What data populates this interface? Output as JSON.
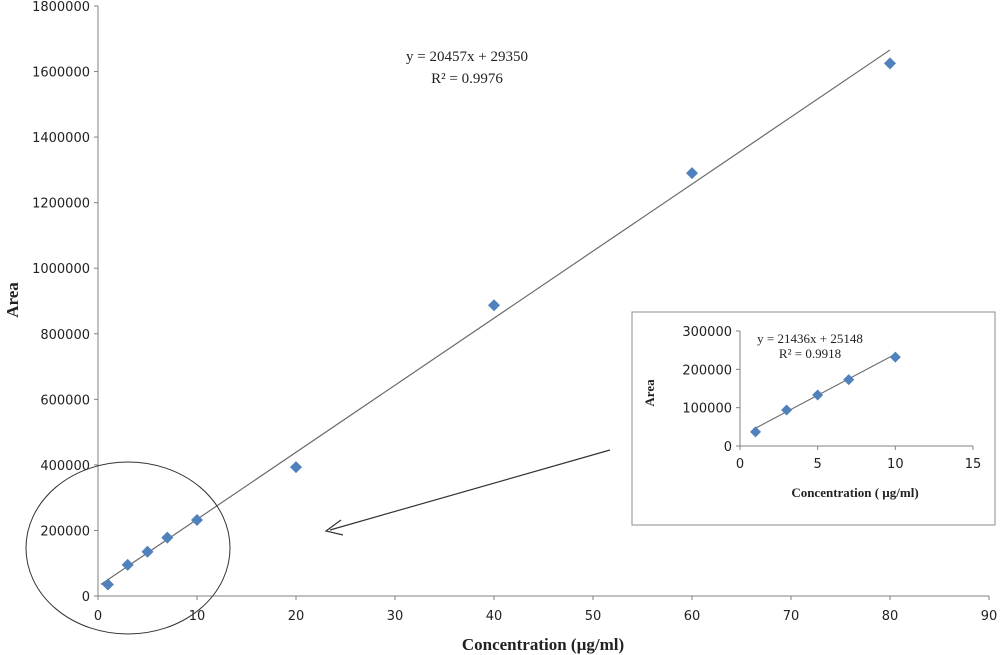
{
  "chart_data": [
    {
      "type": "scatter",
      "xlabel": "Concentration (µg/ml)",
      "ylabel": "Area",
      "xlim": [
        0,
        90
      ],
      "ylim": [
        0,
        1800000
      ],
      "x_ticks": [
        "0",
        "10",
        "20",
        "30",
        "40",
        "50",
        "60",
        "70",
        "80",
        "90"
      ],
      "y_ticks": [
        "0",
        "200000",
        "400000",
        "600000",
        "800000",
        "1000000",
        "1200000",
        "1400000",
        "1600000",
        "1800000"
      ],
      "grid": false,
      "legend": "none",
      "marker": "diamond",
      "marker_color": "#4f81bd",
      "series": [
        {
          "x": [
            1,
            3,
            5,
            7,
            10,
            20,
            40,
            60,
            80
          ],
          "y": [
            35000,
            95000,
            135000,
            178000,
            232000,
            393000,
            887000,
            1290000,
            1625000
          ]
        }
      ],
      "trendline": {
        "type": "linear",
        "slope": 20457,
        "intercept": 29350,
        "x_range": [
          0.3,
          80
        ]
      },
      "annotations": {
        "equation": "y = 20457x + 29350",
        "r_squared": "R² = 0.9976"
      }
    },
    {
      "type": "scatter",
      "xlabel": "Concentration ( µg/ml)",
      "ylabel": "Area",
      "xlim": [
        0,
        15
      ],
      "ylim": [
        0,
        300000
      ],
      "x_ticks": [
        "0",
        "5",
        "10",
        "15"
      ],
      "y_ticks": [
        "0",
        "100000",
        "200000",
        "300000"
      ],
      "grid": false,
      "legend": "none",
      "marker": "diamond",
      "marker_color": "#4f81bd",
      "series": [
        {
          "x": [
            1,
            3,
            5,
            7,
            10
          ],
          "y": [
            37000,
            94000,
            133000,
            173000,
            232000
          ]
        }
      ],
      "trendline": {
        "type": "linear",
        "slope": 21436,
        "intercept": 25148,
        "x_range": [
          0.9,
          10
        ]
      },
      "annotations": {
        "equation": "y = 21436x + 25148",
        "r_squared": "R² = 0.9918"
      }
    }
  ]
}
